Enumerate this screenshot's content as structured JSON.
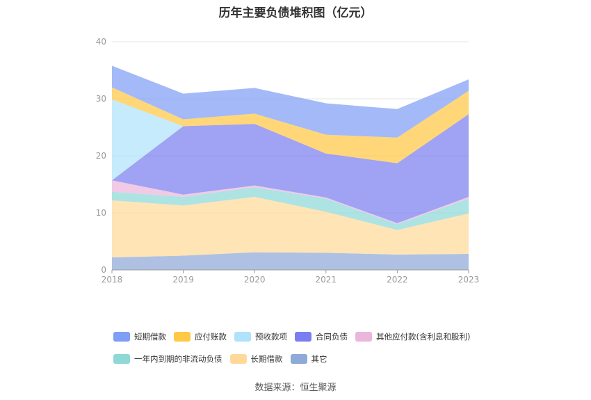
{
  "chart_data": {
    "type": "area",
    "stacked": true,
    "title": "历年主要负债堆积图（亿元）",
    "x": [
      "2018",
      "2019",
      "2020",
      "2021",
      "2022",
      "2023"
    ],
    "ylim": [
      0,
      40
    ],
    "yticks": [
      0,
      10,
      20,
      30,
      40
    ],
    "grid": true,
    "legend_position": "bottom",
    "series": [
      {
        "name": "其它",
        "color": "#8fa9d8",
        "values": [
          2.2,
          2.5,
          3.1,
          3.0,
          2.7,
          2.8
        ]
      },
      {
        "name": "长期借款",
        "color": "#ffd99a",
        "values": [
          10.0,
          8.8,
          9.7,
          7.2,
          4.3,
          7.1
        ]
      },
      {
        "name": "一年内到期的非流动负债",
        "color": "#8ed8d8",
        "values": [
          1.5,
          1.5,
          1.7,
          2.3,
          1.0,
          2.6
        ]
      },
      {
        "name": "其他应付款(含利息和股利)",
        "color": "#ecb5dc",
        "values": [
          2.0,
          0.4,
          0.3,
          0.2,
          0.2,
          0.3
        ]
      },
      {
        "name": "合同负债",
        "color": "#7b7ef0",
        "values": [
          0,
          12.0,
          10.8,
          7.7,
          10.5,
          14.5
        ]
      },
      {
        "name": "预收款项",
        "color": "#aee3fb",
        "values": [
          14.2,
          0,
          0,
          0,
          0,
          0
        ]
      },
      {
        "name": "应付账款",
        "color": "#ffc845",
        "values": [
          2.1,
          1.2,
          1.8,
          3.3,
          4.5,
          4.1
        ]
      },
      {
        "name": "短期借款",
        "color": "#7f9ef5",
        "values": [
          3.8,
          4.5,
          4.5,
          5.5,
          5.0,
          2.0
        ]
      }
    ]
  },
  "legend": {
    "row1": [
      {
        "label": "短期借款",
        "color": "#7f9ef5"
      },
      {
        "label": "应付账款",
        "color": "#ffc845"
      },
      {
        "label": "预收款项",
        "color": "#aee3fb"
      },
      {
        "label": "合同负债",
        "color": "#7b7ef0"
      },
      {
        "label": "其他应付款(含利息和股利)",
        "color": "#ecb5dc"
      }
    ],
    "row2": [
      {
        "label": "一年内到期的非流动负债",
        "color": "#8ed8d8"
      },
      {
        "label": "长期借款",
        "color": "#ffd99a"
      },
      {
        "label": "其它",
        "color": "#8fa9d8"
      }
    ]
  },
  "source": "数据来源：恒生聚源"
}
